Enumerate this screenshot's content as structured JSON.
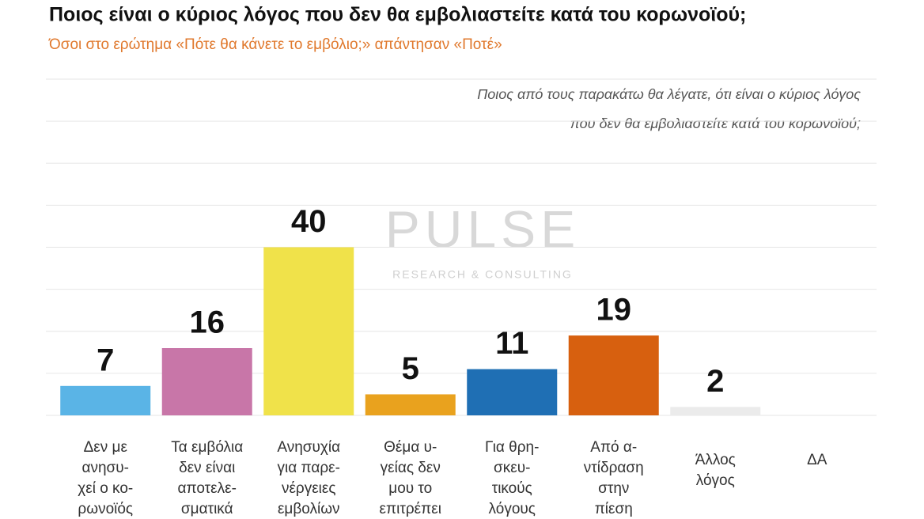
{
  "chart_data": {
    "type": "bar",
    "title": "Ποιος είναι ο κύριος λόγος που δεν θα εμβολιαστείτε κατά του κορωνοϊού;",
    "subtitle": "Όσοι στο ερώτημα «Πότε θα κάνετε το εμβόλιο;» απάντησαν «Ποτέ»",
    "annotation": [
      "Ποιος από τους παρακάτω θα λέγατε, ότι είναι ο κύριος λόγος",
      "που δεν θα εμβολιαστείτε κατά του κορωνοϊού;"
    ],
    "watermark": [
      "PULSE",
      "RESEARCH & CONSULTING"
    ],
    "categories": [
      [
        "Δεν με",
        "ανησυ-",
        "χεί ο κο-",
        "ρωνοϊός"
      ],
      [
        "Τα εμβόλια",
        "δεν είναι",
        "αποτελε-",
        "σματικά"
      ],
      [
        "Ανησυχία",
        "για παρε-",
        "νέργειες",
        "εμβολίων"
      ],
      [
        "Θέμα υ-",
        "γείας δεν",
        "μου το",
        "επιτρέπει"
      ],
      [
        "Για θρη-",
        "σκευ-",
        "τικούς",
        "λόγους"
      ],
      [
        "Από α-",
        "ντίδραση",
        "στην",
        "πίεση"
      ],
      [
        "Άλλος",
        "λόγος"
      ],
      [
        "ΔΑ"
      ]
    ],
    "values": [
      7,
      16,
      40,
      5,
      11,
      19,
      2,
      null
    ],
    "colors": [
      "#5ab4e6",
      "#c876a8",
      "#f0e24a",
      "#e9a21e",
      "#1f6fb4",
      "#d7600f",
      "#ebebeb",
      "#ebebeb"
    ],
    "ylim": [
      0,
      80
    ],
    "yticks": [
      0,
      10,
      20,
      30,
      40,
      50,
      60,
      70,
      80
    ],
    "grid": true
  }
}
